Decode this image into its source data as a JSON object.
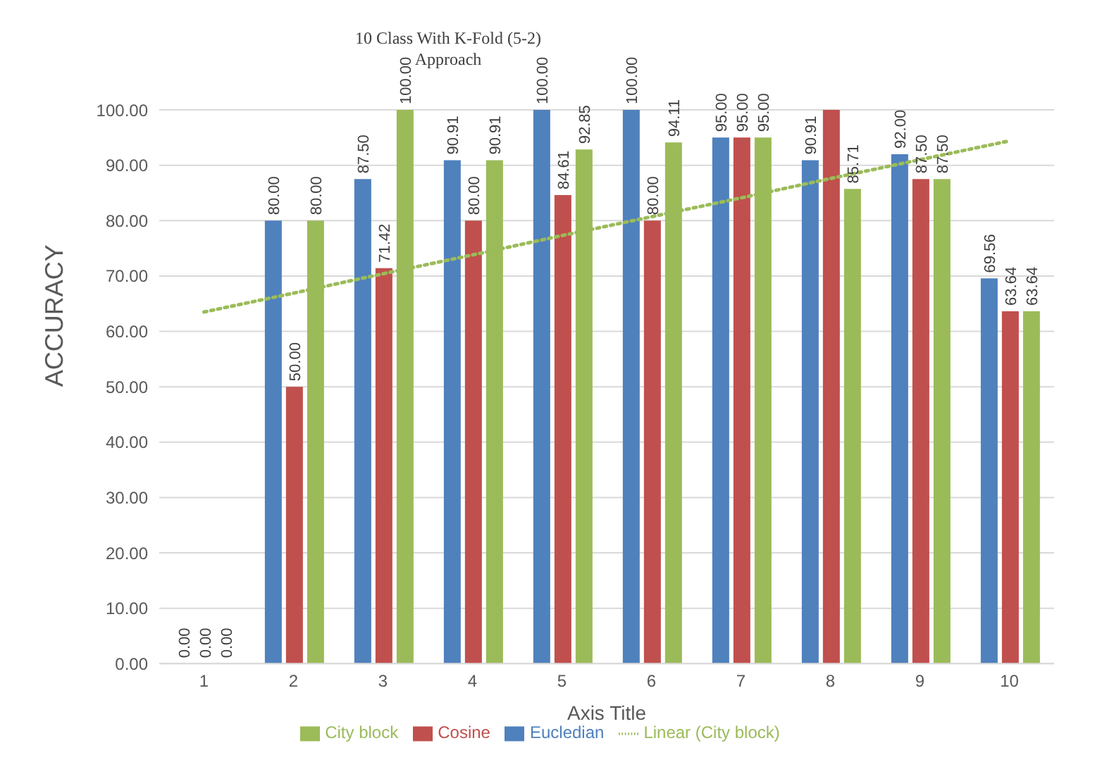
{
  "chart_data": {
    "type": "bar",
    "title": "10 Class With K-Fold (5-2) Approach",
    "xlabel": "Axis Title",
    "ylabel": "ACCURACY",
    "categories": [
      "1",
      "2",
      "3",
      "4",
      "5",
      "6",
      "7",
      "8",
      "9",
      "10"
    ],
    "series": [
      {
        "name": "Eucledian",
        "color": "#4f81bd",
        "values": [
          0,
          80,
          87.5,
          90.91,
          100,
          100,
          95,
          90.91,
          92,
          69.56
        ],
        "value_labels": [
          "0.00",
          "80.00",
          "87.50",
          "90.91",
          "100.00",
          "100.00",
          "95.00",
          "90.91",
          "92.00",
          "69.56"
        ]
      },
      {
        "name": "Cosine",
        "color": "#c0504d",
        "values": [
          0,
          50,
          71.42,
          80,
          84.61,
          80,
          95,
          100,
          87.5,
          63.64
        ],
        "value_labels": [
          "0.00",
          "50.00",
          "71.42",
          "80.00",
          "84.61",
          "80.00",
          "95.00",
          null,
          "87.50",
          "63.64"
        ]
      },
      {
        "name": "City block",
        "color": "#9bbb59",
        "values": [
          0,
          80,
          100,
          90.91,
          92.85,
          94.11,
          95,
          85.71,
          87.5,
          63.64
        ],
        "value_labels": [
          "0.00",
          "80.00",
          "100.00",
          "90.91",
          "92.85",
          "94.11",
          "95.00",
          "85.71",
          "87.50",
          "63.64"
        ]
      },
      {
        "name": "Linear (City block)",
        "type": "line",
        "color": "#9bbb59",
        "line_style": "dotted",
        "values": [
          63.5,
          66.9,
          70.4,
          73.8,
          77.3,
          80.7,
          84.1,
          87.6,
          91.0,
          94.4
        ]
      }
    ],
    "ylim": [
      0,
      100
    ],
    "yticks": [
      {
        "value": 0,
        "label": "0.00"
      },
      {
        "value": 10,
        "label": "10.00"
      },
      {
        "value": 20,
        "label": "20.00"
      },
      {
        "value": 30,
        "label": "30.00"
      },
      {
        "value": 40,
        "label": "40.00"
      },
      {
        "value": 50,
        "label": "50.00"
      },
      {
        "value": 60,
        "label": "60.00"
      },
      {
        "value": 70,
        "label": "70.00"
      },
      {
        "value": 80,
        "label": "80.00"
      },
      {
        "value": 90,
        "label": "90.00"
      },
      {
        "value": 100,
        "label": "100.00"
      }
    ],
    "grid": "y",
    "legend": "bottom"
  }
}
